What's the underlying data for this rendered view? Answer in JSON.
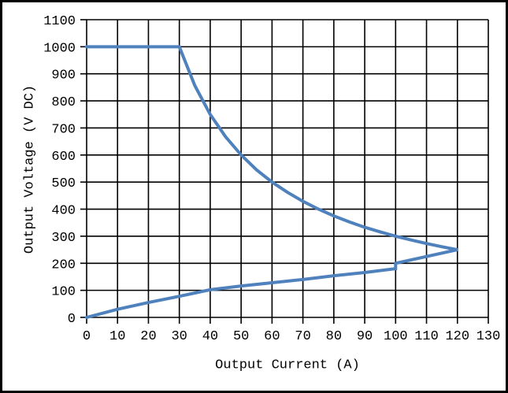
{
  "figure": {
    "background": "#ffffff",
    "border_color": "#000000",
    "grid_color": "#000000",
    "text_color": "#000000"
  },
  "chart_data": {
    "type": "line",
    "title": "",
    "xlabel": "Output Current (A)",
    "ylabel": "Output Voltage (V DC)",
    "xlim": [
      0,
      130
    ],
    "ylim": [
      0,
      1100
    ],
    "x_ticks": [
      0,
      10,
      20,
      30,
      40,
      50,
      60,
      70,
      80,
      90,
      100,
      110,
      120,
      130
    ],
    "y_ticks": [
      0,
      100,
      200,
      300,
      400,
      500,
      600,
      700,
      800,
      900,
      1000,
      1100
    ],
    "grid": true,
    "legend": "none",
    "series": [
      {
        "name": "output-operating-envelope",
        "color": "#4f81bd",
        "description": "Constant voltage at 1000 V DC up to 30 A, constant-power curve down to apex at 120 A / 250 V, then lower boundary back to origin with small step at 100 A",
        "points": [
          [
            0,
            1000
          ],
          [
            30,
            1000
          ],
          [
            35,
            857
          ],
          [
            40,
            750
          ],
          [
            45,
            667
          ],
          [
            50,
            600
          ],
          [
            55,
            545
          ],
          [
            60,
            500
          ],
          [
            65,
            462
          ],
          [
            70,
            429
          ],
          [
            75,
            400
          ],
          [
            80,
            375
          ],
          [
            85,
            353
          ],
          [
            90,
            333
          ],
          [
            95,
            316
          ],
          [
            100,
            300
          ],
          [
            105,
            286
          ],
          [
            110,
            273
          ],
          [
            115,
            261
          ],
          [
            120,
            250
          ],
          [
            100,
            200
          ],
          [
            100,
            180
          ],
          [
            90,
            166
          ],
          [
            80,
            154
          ],
          [
            70,
            140
          ],
          [
            60,
            128
          ],
          [
            50,
            116
          ],
          [
            40,
            102
          ],
          [
            30,
            78
          ],
          [
            20,
            55
          ],
          [
            10,
            30
          ],
          [
            0,
            0
          ]
        ]
      }
    ]
  }
}
